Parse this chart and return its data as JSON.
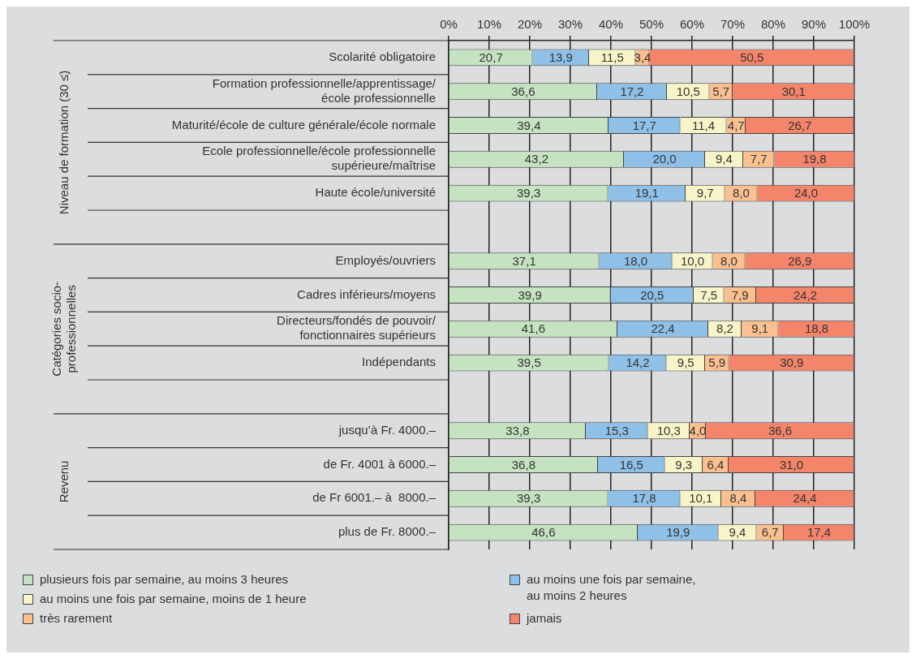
{
  "chart_data": {
    "type": "bar",
    "orientation": "horizontal",
    "stacked": true,
    "categories": [
      "Scolarité obligatoire",
      "Formation professionnelle/apprentissage/\nécole professionnelle",
      "Maturité/école de culture générale/école normale",
      "Ecole professionnelle/école professionnelle\nsupérieure/maîtrise",
      "Haute école/université",
      null,
      "Employés/ouvriers",
      "Cadres inférieurs/moyens",
      "Directeurs/fondés de pouvoir/\nfonctionnaires supérieurs",
      "Indépendants",
      null,
      "jusqu’à Fr. 4000.–",
      "de Fr. 4001 à 6000.–",
      "de Fr 6001.– à  8000.–",
      "plus de Fr. 8000.–"
    ],
    "series": [
      {
        "name": "plusieurs fois par semaine, au moins 3 heures",
        "color": "#c5e3c0",
        "values": [
          20.7,
          36.6,
          39.4,
          43.2,
          39.3,
          null,
          37.1,
          39.9,
          41.6,
          39.5,
          null,
          33.8,
          36.8,
          39.3,
          46.6
        ],
        "value_labels": [
          "20,7",
          "36,6",
          "39,4",
          "43,2",
          "39,3",
          null,
          "37,1",
          "39,9",
          "41,6",
          "39,5",
          null,
          "33,8",
          "36,8",
          "39,3",
          "46,6"
        ]
      },
      {
        "name": "au moins une fois par semaine,\nau moins 2 heures",
        "color": "#8fc0e8",
        "values": [
          13.9,
          17.2,
          17.7,
          20.0,
          19.1,
          null,
          18.0,
          20.5,
          22.4,
          14.2,
          null,
          15.3,
          16.5,
          17.8,
          19.9
        ],
        "value_labels": [
          "13,9",
          "17,2",
          "17,7",
          "20,0",
          "19,1",
          null,
          "18,0",
          "20,5",
          "22,4",
          "14,2",
          null,
          "15,3",
          "16,5",
          "17,8",
          "19,9"
        ]
      },
      {
        "name": "au moins une fois par semaine, moins de 1 heure",
        "color": "#f7f5c8",
        "values": [
          11.5,
          10.5,
          11.4,
          9.4,
          9.7,
          null,
          10.0,
          7.5,
          8.2,
          9.5,
          null,
          10.3,
          9.3,
          10.1,
          9.4
        ],
        "value_labels": [
          "11,5",
          "10,5",
          "11,4",
          "9,4",
          "9,7",
          null,
          "10,0",
          "7,5",
          "8,2",
          "9,5",
          null,
          "10,3",
          "9,3",
          "10,1",
          "9,4"
        ]
      },
      {
        "name": "très rarement",
        "color": "#fbc08f",
        "values": [
          3.4,
          5.7,
          4.7,
          7.7,
          8.0,
          null,
          8.0,
          7.9,
          9.1,
          5.9,
          null,
          4.0,
          6.4,
          8.4,
          6.7
        ],
        "value_labels": [
          "3,4",
          "5,7",
          "4,7",
          "7,7",
          "8,0",
          null,
          "8,0",
          "7,9",
          "9,1",
          "5,9",
          null,
          "4,0",
          "6,4",
          "8,4",
          "6,7"
        ]
      },
      {
        "name": "jamais",
        "color": "#f4856a",
        "values": [
          50.5,
          30.1,
          26.7,
          19.8,
          24.0,
          null,
          26.9,
          24.2,
          18.8,
          30.9,
          null,
          36.6,
          31.0,
          24.4,
          17.4
        ],
        "value_labels": [
          "50,5",
          "30,1",
          "26,7",
          "19,8",
          "24,0",
          null,
          "26,9",
          "24,2",
          "18,8",
          "30,9",
          null,
          "36,6",
          "31,0",
          "24,4",
          "17,4"
        ]
      }
    ],
    "xlim": [
      0,
      100
    ],
    "xticks": [
      {
        "value": 0,
        "label": "0%"
      },
      {
        "value": 10,
        "label": "10%"
      },
      {
        "value": 20,
        "label": "20%"
      },
      {
        "value": 30,
        "label": "30%"
      },
      {
        "value": 40,
        "label": "40%"
      },
      {
        "value": 50,
        "label": "50%"
      },
      {
        "value": 60,
        "label": "60%"
      },
      {
        "value": 70,
        "label": "70%"
      },
      {
        "value": 80,
        "label": "80%"
      },
      {
        "value": 90,
        "label": "90%"
      },
      {
        "value": 100,
        "label": "100%"
      }
    ],
    "grid": "x",
    "legend": "bottom",
    "annotations": [
      "Niveau de formation (30 ≤)",
      "Catégories socio-\nprofessionnelles",
      "Revenu"
    ]
  }
}
